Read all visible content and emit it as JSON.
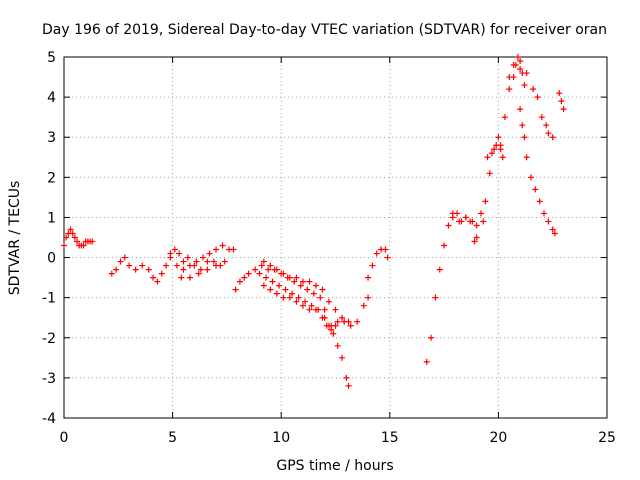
{
  "chart_data": {
    "type": "scatter",
    "title": "Day 196 of 2019, Sidereal Day-to-day VTEC variation (SDTVAR) for receiver oran",
    "xlabel": "GPS time / hours",
    "ylabel": "SDTVAR / TECUs",
    "xlim": [
      0,
      25
    ],
    "ylim": [
      -4,
      5
    ],
    "xticks": [
      "0",
      "5",
      "10",
      "15",
      "20",
      "25"
    ],
    "yticks": [
      "-4",
      "-3",
      "-2",
      "-1",
      "0",
      "1",
      "2",
      "3",
      "4",
      "5"
    ],
    "grid": true,
    "marker": "plus",
    "color": "#ff0000",
    "series": [
      {
        "name": "SDTVAR",
        "points": [
          [
            0.0,
            0.3
          ],
          [
            0.1,
            0.5
          ],
          [
            0.2,
            0.6
          ],
          [
            0.3,
            0.7
          ],
          [
            0.4,
            0.6
          ],
          [
            0.5,
            0.5
          ],
          [
            0.6,
            0.4
          ],
          [
            0.7,
            0.3
          ],
          [
            0.8,
            0.3
          ],
          [
            0.9,
            0.3
          ],
          [
            1.0,
            0.4
          ],
          [
            1.1,
            0.4
          ],
          [
            1.2,
            0.4
          ],
          [
            1.3,
            0.4
          ],
          [
            2.2,
            -0.4
          ],
          [
            2.4,
            -0.3
          ],
          [
            2.6,
            -0.1
          ],
          [
            2.8,
            0.0
          ],
          [
            3.0,
            -0.2
          ],
          [
            3.3,
            -0.3
          ],
          [
            3.6,
            -0.2
          ],
          [
            3.9,
            -0.3
          ],
          [
            4.1,
            -0.5
          ],
          [
            4.3,
            -0.6
          ],
          [
            4.5,
            -0.4
          ],
          [
            4.7,
            -0.2
          ],
          [
            4.9,
            0.0
          ],
          [
            5.1,
            0.2
          ],
          [
            5.3,
            0.1
          ],
          [
            5.5,
            -0.1
          ],
          [
            5.7,
            0.0
          ],
          [
            6.0,
            -0.2
          ],
          [
            6.3,
            -0.3
          ],
          [
            6.6,
            -0.1
          ],
          [
            6.9,
            -0.1
          ],
          [
            7.2,
            -0.2
          ],
          [
            4.9,
            0.1
          ],
          [
            5.2,
            -0.2
          ],
          [
            5.5,
            -0.3
          ],
          [
            5.8,
            -0.2
          ],
          [
            6.1,
            -0.1
          ],
          [
            6.4,
            0.0
          ],
          [
            6.7,
            0.1
          ],
          [
            7.0,
            0.2
          ],
          [
            7.3,
            0.3
          ],
          [
            7.6,
            0.2
          ],
          [
            7.8,
            0.2
          ],
          [
            5.4,
            -0.5
          ],
          [
            5.8,
            -0.5
          ],
          [
            6.2,
            -0.4
          ],
          [
            6.6,
            -0.3
          ],
          [
            7.0,
            -0.2
          ],
          [
            7.4,
            -0.1
          ],
          [
            7.9,
            -0.8
          ],
          [
            8.1,
            -0.6
          ],
          [
            8.3,
            -0.5
          ],
          [
            8.5,
            -0.4
          ],
          [
            8.8,
            -0.3
          ],
          [
            9.1,
            -0.2
          ],
          [
            9.4,
            -0.3
          ],
          [
            9.7,
            -0.3
          ],
          [
            10.0,
            -0.4
          ],
          [
            10.3,
            -0.5
          ],
          [
            10.6,
            -0.6
          ],
          [
            10.9,
            -0.7
          ],
          [
            11.2,
            -0.8
          ],
          [
            11.5,
            -0.9
          ],
          [
            11.8,
            -1.0
          ],
          [
            12.0,
            -1.3
          ],
          [
            12.2,
            -1.7
          ],
          [
            12.4,
            -1.9
          ],
          [
            12.6,
            -2.2
          ],
          [
            12.8,
            -2.5
          ],
          [
            13.0,
            -3.0
          ],
          [
            13.1,
            -3.2
          ],
          [
            9.0,
            -0.4
          ],
          [
            9.3,
            -0.5
          ],
          [
            9.6,
            -0.6
          ],
          [
            9.9,
            -0.7
          ],
          [
            10.2,
            -0.8
          ],
          [
            10.5,
            -0.9
          ],
          [
            10.8,
            -1.0
          ],
          [
            11.1,
            -1.1
          ],
          [
            11.4,
            -1.2
          ],
          [
            11.7,
            -1.3
          ],
          [
            12.0,
            -1.5
          ],
          [
            12.3,
            -1.7
          ],
          [
            12.6,
            -1.6
          ],
          [
            12.9,
            -1.6
          ],
          [
            13.2,
            -1.7
          ],
          [
            13.5,
            -1.6
          ],
          [
            13.8,
            -1.2
          ],
          [
            14.0,
            -1.0
          ],
          [
            9.2,
            -0.7
          ],
          [
            9.5,
            -0.8
          ],
          [
            9.8,
            -0.9
          ],
          [
            10.1,
            -1.0
          ],
          [
            10.4,
            -1.0
          ],
          [
            10.7,
            -1.1
          ],
          [
            11.0,
            -1.2
          ],
          [
            11.3,
            -1.3
          ],
          [
            11.6,
            -1.3
          ],
          [
            11.9,
            -1.5
          ],
          [
            12.1,
            -1.7
          ],
          [
            12.3,
            -1.8
          ],
          [
            12.5,
            -1.7
          ],
          [
            9.2,
            -0.1
          ],
          [
            9.5,
            -0.2
          ],
          [
            9.8,
            -0.3
          ],
          [
            10.1,
            -0.4
          ],
          [
            10.4,
            -0.5
          ],
          [
            10.7,
            -0.5
          ],
          [
            11.0,
            -0.6
          ],
          [
            11.3,
            -0.6
          ],
          [
            11.6,
            -0.7
          ],
          [
            11.9,
            -0.8
          ],
          [
            12.2,
            -1.1
          ],
          [
            12.5,
            -1.3
          ],
          [
            12.8,
            -1.5
          ],
          [
            13.1,
            -1.6
          ],
          [
            14.0,
            -0.5
          ],
          [
            14.2,
            -0.2
          ],
          [
            14.4,
            0.1
          ],
          [
            14.6,
            0.2
          ],
          [
            14.8,
            0.2
          ],
          [
            14.9,
            0.0
          ],
          [
            16.7,
            -2.6
          ],
          [
            16.9,
            -2.0
          ],
          [
            17.1,
            -1.0
          ],
          [
            17.3,
            -0.3
          ],
          [
            17.5,
            0.3
          ],
          [
            17.7,
            0.8
          ],
          [
            17.9,
            1.0
          ],
          [
            18.1,
            1.1
          ],
          [
            18.3,
            0.9
          ],
          [
            18.5,
            1.0
          ],
          [
            18.7,
            0.9
          ],
          [
            18.9,
            0.4
          ],
          [
            19.0,
            0.5
          ],
          [
            19.2,
            1.1
          ],
          [
            19.4,
            1.4
          ],
          [
            19.6,
            2.1
          ],
          [
            19.8,
            2.7
          ],
          [
            20.0,
            3.0
          ],
          [
            20.1,
            2.8
          ],
          [
            20.3,
            3.5
          ],
          [
            20.5,
            4.2
          ],
          [
            20.7,
            4.5
          ],
          [
            20.8,
            4.8
          ],
          [
            20.9,
            5.0
          ],
          [
            21.0,
            4.9
          ],
          [
            21.1,
            4.6
          ],
          [
            21.2,
            4.3
          ],
          [
            17.9,
            1.1
          ],
          [
            18.2,
            0.9
          ],
          [
            18.5,
            1.0
          ],
          [
            18.8,
            0.9
          ],
          [
            19.0,
            0.8
          ],
          [
            19.3,
            0.9
          ],
          [
            19.5,
            2.5
          ],
          [
            19.7,
            2.6
          ],
          [
            19.9,
            2.8
          ],
          [
            20.1,
            2.7
          ],
          [
            20.2,
            2.5
          ],
          [
            20.5,
            4.5
          ],
          [
            20.7,
            4.8
          ],
          [
            21.0,
            4.7
          ],
          [
            21.3,
            4.6
          ],
          [
            21.6,
            4.2
          ],
          [
            21.8,
            4.0
          ],
          [
            22.0,
            3.5
          ],
          [
            22.2,
            3.3
          ],
          [
            22.3,
            3.1
          ],
          [
            22.5,
            3.0
          ],
          [
            21.0,
            3.7
          ],
          [
            21.1,
            3.3
          ],
          [
            21.2,
            3.0
          ],
          [
            21.3,
            2.5
          ],
          [
            21.5,
            2.0
          ],
          [
            21.7,
            1.7
          ],
          [
            21.9,
            1.4
          ],
          [
            22.1,
            1.1
          ],
          [
            22.3,
            0.9
          ],
          [
            22.5,
            0.7
          ],
          [
            22.6,
            0.6
          ],
          [
            22.8,
            4.1
          ],
          [
            22.9,
            3.9
          ],
          [
            23.0,
            3.7
          ]
        ]
      }
    ]
  }
}
